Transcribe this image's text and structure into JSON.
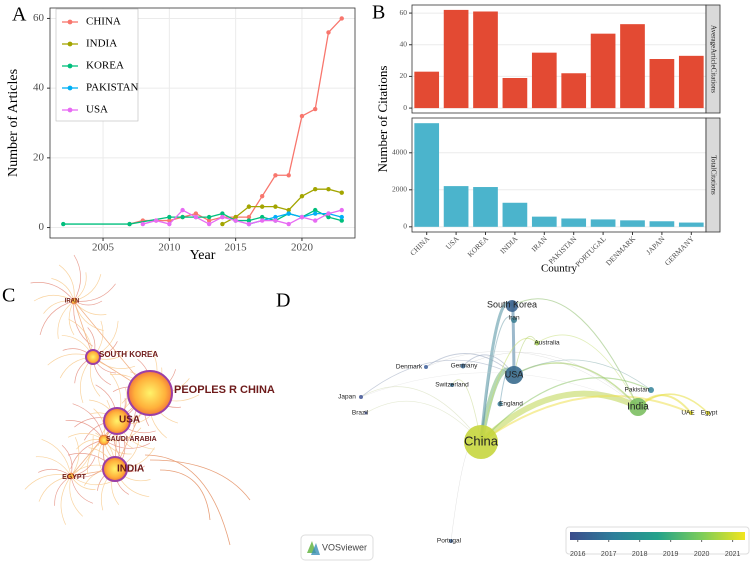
{
  "chart_data": [
    {
      "type": "line",
      "panel_label": "A",
      "x_label": "Year",
      "y_label": "Number of Articles",
      "xlim": [
        2001,
        2024
      ],
      "xticks": [
        2005,
        2010,
        2015,
        2020
      ],
      "ylim": [
        -3,
        63
      ],
      "yticks": [
        0,
        20,
        40,
        60
      ],
      "grid": true,
      "legend": "top-left",
      "series": [
        {
          "name": "CHINA",
          "color": "#f8766d",
          "x": [
            2007,
            2008,
            2009,
            2010,
            2011,
            2012,
            2013,
            2014,
            2015,
            2016,
            2017,
            2018,
            2019,
            2020,
            2021,
            2022,
            2023
          ],
          "values": [
            1,
            2,
            2,
            2,
            3,
            4,
            2,
            3,
            3,
            3,
            9,
            15,
            15,
            32,
            34,
            56,
            60
          ]
        },
        {
          "name": "INDIA",
          "color": "#a3a500",
          "x": [
            2014,
            2015,
            2016,
            2017,
            2018,
            2019,
            2020,
            2021,
            2022,
            2023
          ],
          "values": [
            1,
            3,
            6,
            6,
            6,
            5,
            9,
            11,
            11,
            10
          ]
        },
        {
          "name": "KOREA",
          "color": "#00bf7d",
          "x": [
            2002,
            2007,
            2010,
            2011,
            2012,
            2013,
            2014,
            2015,
            2016,
            2017,
            2018,
            2019,
            2020,
            2021,
            2022,
            2023
          ],
          "values": [
            1,
            1,
            3,
            3,
            3,
            3,
            4,
            2,
            2,
            3,
            2,
            4,
            3,
            5,
            3,
            2
          ]
        },
        {
          "name": "PAKISTAN",
          "color": "#00b0f6",
          "x": [
            2016,
            2018,
            2019,
            2020,
            2021,
            2022,
            2023
          ],
          "values": [
            1,
            3,
            4,
            3,
            4,
            4,
            3
          ]
        },
        {
          "name": "USA",
          "color": "#e76bf3",
          "x": [
            2008,
            2009,
            2010,
            2011,
            2012,
            2013,
            2014,
            2015,
            2016,
            2017,
            2018,
            2019,
            2020,
            2021,
            2022,
            2023
          ],
          "values": [
            1,
            2,
            1,
            5,
            3,
            1,
            3,
            2,
            1,
            2,
            2,
            1,
            3,
            2,
            4,
            5
          ]
        }
      ]
    },
    {
      "type": "facet_bar",
      "panel_label": "B",
      "x_label": "Country",
      "y_label": "Number of Citations",
      "categories": [
        "CHINA",
        "USA",
        "KOREA",
        "INDIA",
        "IRAN",
        "PAKISTAN",
        "PORTUGAL",
        "DENMARK",
        "JAPAN",
        "GERMANY"
      ],
      "facets": [
        {
          "name": "AverageArticleCitations",
          "color": "#e34a33",
          "values": [
            23,
            62,
            61,
            19,
            35,
            22,
            47,
            53,
            31,
            33
          ],
          "ylim": [
            -3.1,
            65.1
          ],
          "yticks": [
            0,
            20,
            40,
            60
          ]
        },
        {
          "name": "TotalCitations",
          "color": "#4bb4cc",
          "values": [
            5600,
            2200,
            2150,
            1300,
            550,
            450,
            400,
            350,
            300,
            230
          ],
          "ylim": [
            -280,
            5880
          ],
          "yticks": [
            0,
            2000,
            4000
          ]
        }
      ]
    },
    {
      "type": "network",
      "panel_label": "C",
      "nodes": [
        "IRAN",
        "SOUTH KOREA",
        "PEOPLES R CHINA",
        "USA",
        "SAUDI ARABIA",
        "INDIA",
        "EGYPT"
      ]
    },
    {
      "type": "overlay_network",
      "panel_label": "D",
      "software": "VOSviewer",
      "nodes": [
        "South Korea",
        "Iran",
        "Australia",
        "Denmark",
        "Germany",
        "Switzerland",
        "USA",
        "Japan",
        "Brazil",
        "England",
        "China",
        "Pakistan",
        "India",
        "UAE",
        "Egypt",
        "Portugal"
      ],
      "colorbar": {
        "xlim": [
          2015.75,
          2021.4
        ],
        "xticks": [
          2016,
          2017,
          2018,
          2019,
          2020,
          2021
        ]
      }
    }
  ]
}
